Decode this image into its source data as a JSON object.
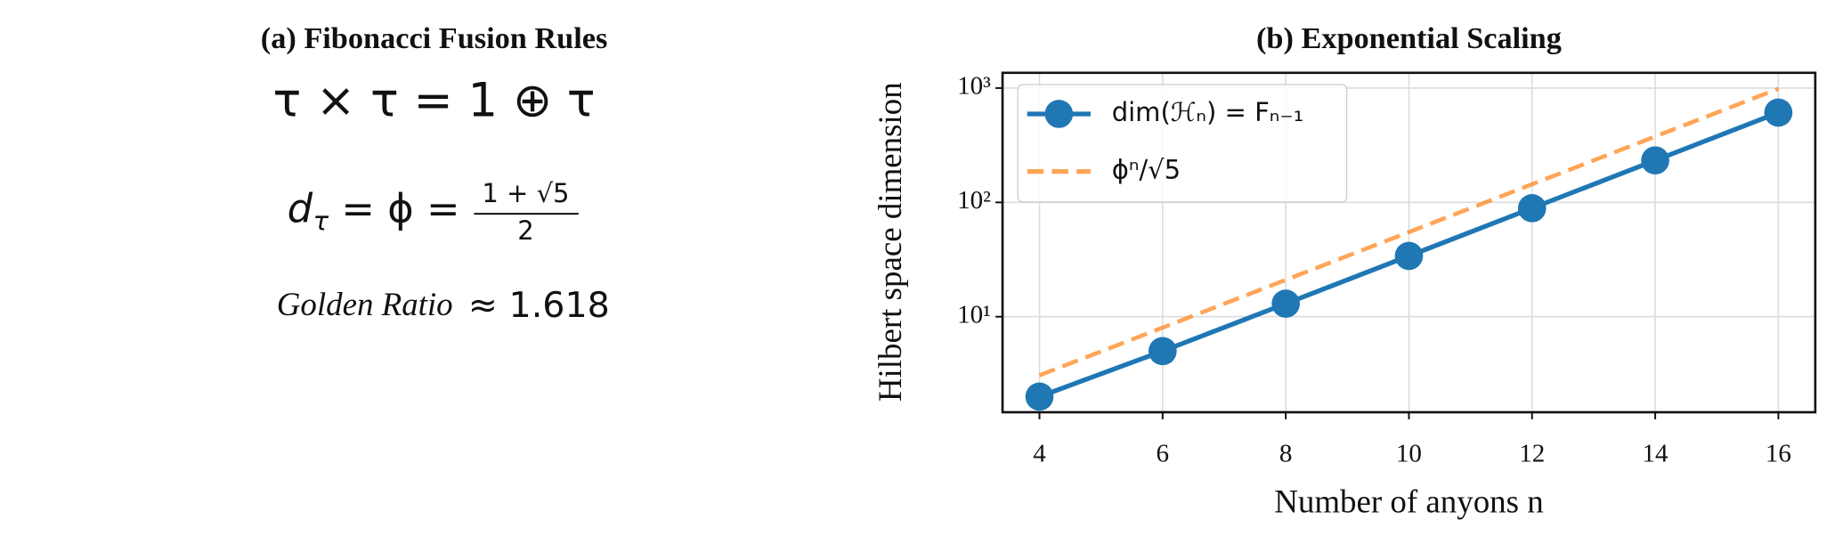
{
  "panel_a": {
    "title": "(a) Fibonacci Fusion Rules",
    "fusion_rule": "τ × τ = 1 ⊕ τ",
    "quantum_dimension": {
      "lhs": "d",
      "lhs_sub": "τ",
      "middle": "= ϕ =",
      "numerator": "1 + √5",
      "denominator": "2"
    },
    "golden_ratio": {
      "label": "Golden Ratio",
      "value": "≈ 1.618"
    }
  },
  "chart_data": {
    "type": "line",
    "title": "(b) Exponential Scaling",
    "xlabel": "Number of anyons n",
    "ylabel": "Hilbert space dimension",
    "x": [
      4,
      6,
      8,
      10,
      12,
      14,
      16
    ],
    "series": [
      {
        "name": "dim(ℋₙ) = Fₙ₋₁",
        "color": "#1f77b4",
        "style": "solid",
        "marker": true,
        "values": [
          2,
          5,
          13,
          34,
          89,
          233,
          610
        ]
      },
      {
        "name": "ϕⁿ/√5",
        "color": "#ff7f0e",
        "style": "dashed",
        "marker": false,
        "values": [
          3.07,
          8.02,
          21.0,
          55.0,
          144,
          377,
          987
        ]
      }
    ],
    "xlim": [
      3.4,
      16.6
    ],
    "xticks": [
      4,
      6,
      8,
      10,
      12,
      14,
      16
    ],
    "ylim": [
      1.46,
      1360
    ],
    "yscale": "log",
    "yticks": [
      {
        "value": 10,
        "label": "10¹"
      },
      {
        "value": 100,
        "label": "10²"
      },
      {
        "value": 1000,
        "label": "10³"
      }
    ],
    "grid": true,
    "legend": "upper left"
  }
}
